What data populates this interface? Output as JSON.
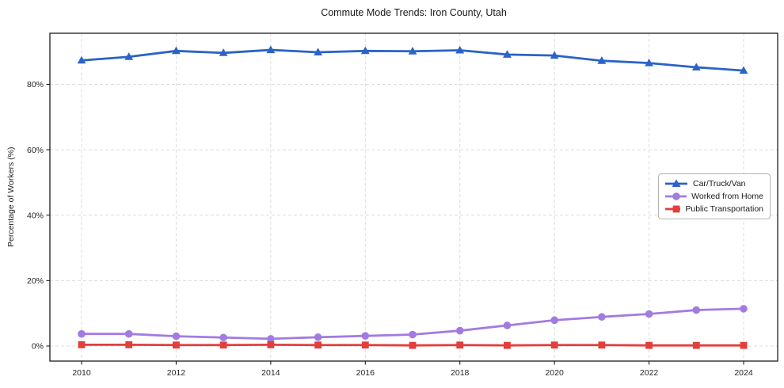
{
  "chart_data": {
    "type": "line",
    "title": "Commute Mode Trends: Iron County, Utah",
    "xlabel": "",
    "ylabel": "Percentage of Workers (%)",
    "x": [
      2010,
      2011,
      2012,
      2013,
      2014,
      2015,
      2016,
      2017,
      2018,
      2019,
      2020,
      2021,
      2022,
      2023,
      2024
    ],
    "series": [
      {
        "name": "Car/Truck/Van",
        "color": "#2b63c6",
        "marker": "triangle",
        "values": [
          87.3,
          88.4,
          90.2,
          89.6,
          90.5,
          89.8,
          90.2,
          90.1,
          90.4,
          89.1,
          88.8,
          87.2,
          86.5,
          85.2,
          84.2
        ]
      },
      {
        "name": "Worked from Home",
        "color": "#a27be0",
        "marker": "circle",
        "values": [
          3.7,
          3.7,
          3.0,
          2.6,
          2.2,
          2.7,
          3.1,
          3.5,
          4.7,
          6.3,
          7.9,
          8.9,
          9.8,
          11.0,
          11.4
        ]
      },
      {
        "name": "Public Transportation",
        "color": "#e23e3c",
        "marker": "square",
        "values": [
          0.4,
          0.4,
          0.3,
          0.3,
          0.4,
          0.3,
          0.3,
          0.2,
          0.3,
          0.2,
          0.3,
          0.3,
          0.2,
          0.2,
          0.2
        ]
      }
    ],
    "xticks": [
      2010,
      2012,
      2014,
      2016,
      2018,
      2020,
      2022,
      2024
    ],
    "yticks": [
      0,
      20,
      40,
      60,
      80
    ],
    "ytick_suffix": "%",
    "xlim": [
      2009.33,
      2024.72
    ],
    "ylim": [
      -4.6,
      95.6
    ],
    "grid": true,
    "grid_style": "dashed",
    "legend_position": "center right",
    "colors": {
      "background": "#ffffff",
      "grid": "#dcdcdc",
      "spine": "#1c1c1c",
      "tick": "#1c1c1c",
      "tick_label": "#262626",
      "title": "#1a1a1a"
    }
  }
}
